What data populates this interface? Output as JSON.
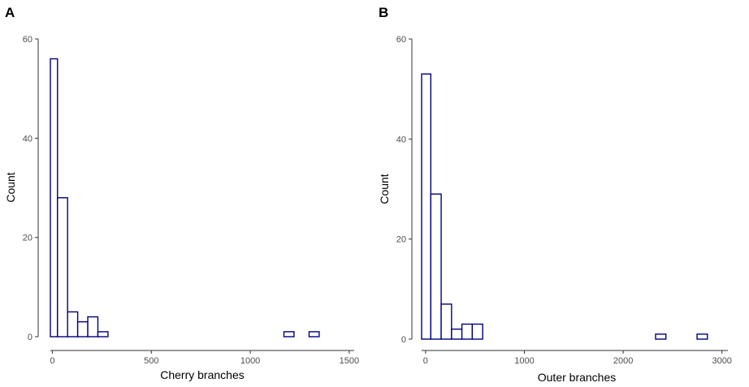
{
  "chart_data": [
    {
      "panel": "A",
      "type": "bar",
      "xlabel": "Cherry branches",
      "ylabel": "Count",
      "xlim": [
        -10,
        1525
      ],
      "ylim": [
        0,
        60
      ],
      "xticks": [
        0,
        500,
        1000,
        1500
      ],
      "yticks": [
        0,
        20,
        40,
        60
      ],
      "bin_width": 51,
      "bins": [
        {
          "x0": -25,
          "x1": 26,
          "count": 56
        },
        {
          "x0": 26,
          "x1": 77,
          "count": 28
        },
        {
          "x0": 77,
          "x1": 128,
          "count": 5
        },
        {
          "x0": 128,
          "x1": 179,
          "count": 3
        },
        {
          "x0": 179,
          "x1": 230,
          "count": 4
        },
        {
          "x0": 230,
          "x1": 281,
          "count": 1
        },
        {
          "x0": 281,
          "x1": 1170,
          "count": 0
        },
        {
          "x0": 1170,
          "x1": 1221,
          "count": 1
        },
        {
          "x0": 1221,
          "x1": 1297,
          "count": 0
        },
        {
          "x0": 1297,
          "x1": 1348,
          "count": 1
        },
        {
          "x0": 1348,
          "x1": 1525,
          "count": 0
        }
      ],
      "grid": false,
      "legend": "none"
    },
    {
      "panel": "B",
      "type": "bar",
      "xlabel": "Outer branches",
      "ylabel": "Count",
      "xlim": [
        -40,
        3060
      ],
      "ylim": [
        0,
        60
      ],
      "xticks": [
        0,
        1000,
        2000,
        3000
      ],
      "yticks": [
        0,
        20,
        40,
        60
      ],
      "bin_width": 105,
      "bins": [
        {
          "x0": -52,
          "x1": 53,
          "count": 53
        },
        {
          "x0": 53,
          "x1": 158,
          "count": 29
        },
        {
          "x0": 158,
          "x1": 263,
          "count": 7
        },
        {
          "x0": 263,
          "x1": 368,
          "count": 2
        },
        {
          "x0": 368,
          "x1": 473,
          "count": 3
        },
        {
          "x0": 473,
          "x1": 578,
          "count": 3
        },
        {
          "x0": 578,
          "x1": 2328,
          "count": 0
        },
        {
          "x0": 2328,
          "x1": 2433,
          "count": 1
        },
        {
          "x0": 2433,
          "x1": 2748,
          "count": 0
        },
        {
          "x0": 2748,
          "x1": 2853,
          "count": 1
        },
        {
          "x0": 2853,
          "x1": 3060,
          "count": 0
        }
      ],
      "grid": false,
      "legend": "none"
    }
  ]
}
